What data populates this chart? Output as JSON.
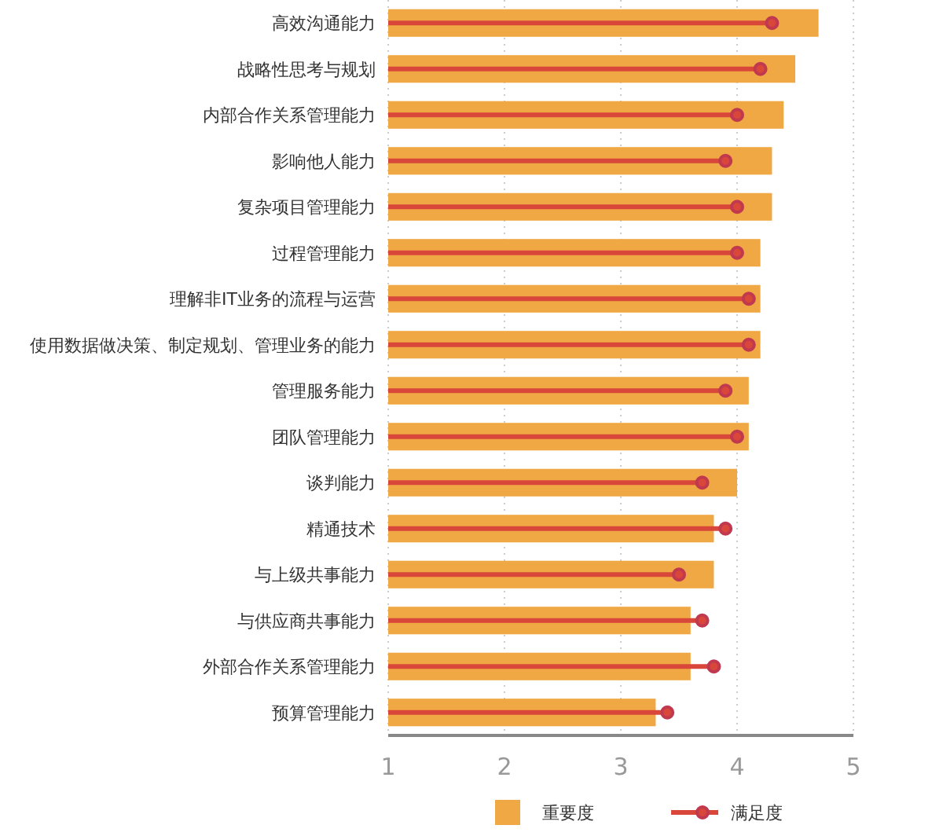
{
  "chart_data": {
    "type": "bar",
    "orientation": "horizontal",
    "categories": [
      "高效沟通能力",
      "战略性思考与规划",
      "内部合作关系管理能力",
      "影响他人能力",
      "复杂项目管理能力",
      "过程管理能力",
      "理解非IT业务的流程与运营",
      "使用数据做决策、制定规划、管理业务的能力",
      "管理服务能力",
      "团队管理能力",
      "谈判能力",
      "精通技术",
      "与上级共事能力",
      "与供应商共事能力",
      "外部合作关系管理能力",
      "预算管理能力"
    ],
    "series": [
      {
        "name": "重要度",
        "type": "bar",
        "color": "#f0a845",
        "values": [
          4.7,
          4.5,
          4.4,
          4.3,
          4.3,
          4.2,
          4.2,
          4.2,
          4.1,
          4.1,
          4.0,
          3.8,
          3.8,
          3.6,
          3.6,
          3.3
        ]
      },
      {
        "name": "满足度",
        "type": "lollipop",
        "color": "#d9473a",
        "marker": "circle",
        "values": [
          4.3,
          4.2,
          4.0,
          3.9,
          4.0,
          4.0,
          4.1,
          4.1,
          3.9,
          4.0,
          3.7,
          3.9,
          3.5,
          3.7,
          3.8,
          3.4
        ]
      }
    ],
    "xlim": [
      1,
      5
    ],
    "xticks": [
      1,
      2,
      3,
      4,
      5
    ],
    "grid": "x",
    "legend": "bottom"
  }
}
